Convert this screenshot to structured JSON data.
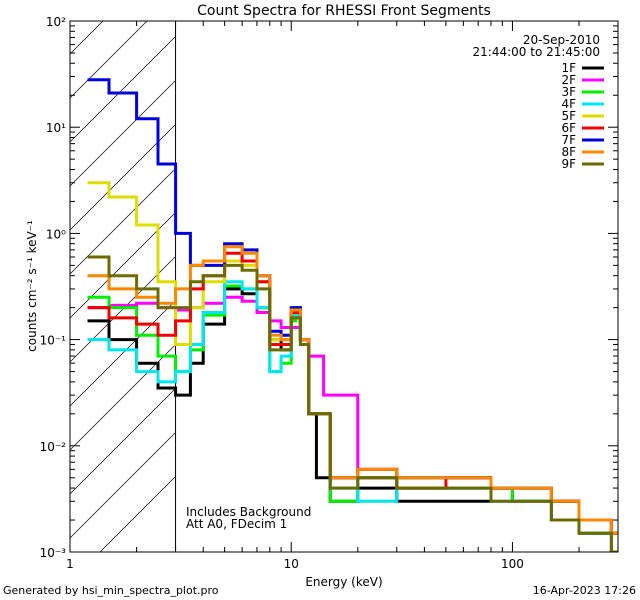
{
  "chart_data": {
    "type": "line",
    "title": "Count Spectra for RHESSI Front Segments",
    "xlabel": "Energy (keV)",
    "ylabel": "counts cm⁻² s⁻¹ keV⁻¹",
    "xscale": "log",
    "yscale": "log",
    "xlim": [
      1,
      300
    ],
    "ylim": [
      0.001,
      100
    ],
    "x_ticks": [
      {
        "value": 1,
        "label": "1"
      },
      {
        "value": 10,
        "label": "10"
      },
      {
        "value": 100,
        "label": "100"
      }
    ],
    "y_ticks": [
      {
        "value": 0.001,
        "label": "10⁻³"
      },
      {
        "value": 0.01,
        "label": "10⁻²"
      },
      {
        "value": 0.1,
        "label": "10⁻¹"
      },
      {
        "value": 1,
        "label": "10⁰"
      },
      {
        "value": 10,
        "label": "10¹"
      },
      {
        "value": 100,
        "label": "10²"
      }
    ],
    "date": "20-Sep-2010",
    "time_range": "21:44:00 to 21:45:00",
    "annotations": [
      "Includes Background",
      "Att A0, FDecim 1"
    ],
    "hatched_region": {
      "x_from": 1,
      "x_to": 3
    },
    "series": [
      {
        "name": "1F",
        "color": "#000000",
        "x": [
          1.2,
          1.5,
          2.0,
          2.5,
          3.0,
          3.5,
          4.0,
          5.0,
          6.0,
          7.0,
          8.0,
          9.0,
          10.0,
          10.5,
          11.0,
          12.0,
          13.0,
          15.0,
          20.0,
          30.0,
          50.0,
          80.0,
          100.0,
          150.0,
          200.0,
          280.0
        ],
        "values": [
          0.15,
          0.1,
          0.06,
          0.035,
          0.03,
          0.06,
          0.14,
          0.3,
          0.27,
          0.2,
          0.1,
          0.08,
          0.16,
          0.18,
          0.1,
          0.02,
          0.005,
          0.003,
          0.004,
          0.003,
          0.003,
          0.004,
          0.003,
          0.002,
          0.0015,
          0.001
        ]
      },
      {
        "name": "2F",
        "color": "#ff00ff",
        "x": [
          1.2,
          1.5,
          2.0,
          2.5,
          3.0,
          3.5,
          4.0,
          5.0,
          6.0,
          7.0,
          8.0,
          9.0,
          10.0,
          11.0,
          12.0,
          14.0,
          20.0,
          30.0,
          50.0,
          80.0,
          100.0,
          150.0,
          200.0,
          280.0
        ],
        "values": [
          0.2,
          0.21,
          0.22,
          0.2,
          0.19,
          0.2,
          0.22,
          0.25,
          0.23,
          0.18,
          0.15,
          0.13,
          0.13,
          0.1,
          0.07,
          0.03,
          0.006,
          0.004,
          0.004,
          0.004,
          0.003,
          0.003,
          0.002,
          0.0015
        ]
      },
      {
        "name": "3F",
        "color": "#00ee00",
        "x": [
          1.2,
          1.5,
          2.0,
          2.5,
          3.0,
          3.5,
          4.0,
          5.0,
          6.0,
          7.0,
          8.0,
          9.0,
          10.0,
          10.5,
          11.0,
          12.0,
          15.0,
          20.0,
          30.0,
          50.0,
          80.0,
          100.0,
          150.0,
          200.0,
          280.0
        ],
        "values": [
          0.25,
          0.2,
          0.11,
          0.07,
          0.05,
          0.08,
          0.17,
          0.32,
          0.3,
          0.2,
          0.05,
          0.06,
          0.15,
          0.2,
          0.1,
          0.02,
          0.003,
          0.005,
          0.004,
          0.004,
          0.004,
          0.003,
          0.003,
          0.002,
          0.0015
        ]
      },
      {
        "name": "4F",
        "color": "#00e5ee",
        "x": [
          1.2,
          1.5,
          2.0,
          2.5,
          3.0,
          3.5,
          4.0,
          5.0,
          6.0,
          7.0,
          8.0,
          9.0,
          10.0,
          11.0,
          12.0,
          15.0,
          20.0,
          30.0,
          50.0,
          80.0,
          100.0,
          150.0,
          200.0,
          280.0
        ],
        "values": [
          0.1,
          0.08,
          0.05,
          0.04,
          0.05,
          0.09,
          0.18,
          0.35,
          0.3,
          0.2,
          0.05,
          0.07,
          0.17,
          0.09,
          0.02,
          0.004,
          0.003,
          0.004,
          0.004,
          0.003,
          0.003,
          0.002,
          0.0015,
          0.001
        ]
      },
      {
        "name": "5F",
        "color": "#dddd00",
        "x": [
          1.2,
          1.5,
          2.0,
          2.5,
          3.0,
          3.5,
          4.0,
          5.0,
          6.0,
          7.0,
          8.0,
          9.0,
          10.0,
          11.0,
          12.0,
          15.0,
          20.0,
          30.0,
          50.0,
          80.0,
          100.0,
          150.0,
          200.0,
          280.0
        ],
        "values": [
          3.0,
          2.2,
          1.2,
          0.35,
          0.09,
          0.2,
          0.35,
          0.55,
          0.5,
          0.35,
          0.1,
          0.1,
          0.18,
          0.1,
          0.02,
          0.005,
          0.006,
          0.005,
          0.005,
          0.004,
          0.004,
          0.003,
          0.002,
          0.0015
        ]
      },
      {
        "name": "6F",
        "color": "#ee0000",
        "x": [
          1.2,
          1.5,
          2.0,
          2.5,
          3.0,
          3.5,
          4.0,
          5.0,
          6.0,
          7.0,
          8.0,
          9.0,
          10.0,
          11.0,
          12.0,
          15.0,
          20.0,
          30.0,
          50.0,
          80.0,
          100.0,
          150.0,
          200.0,
          280.0
        ],
        "values": [
          0.2,
          0.16,
          0.14,
          0.11,
          0.15,
          0.3,
          0.4,
          0.65,
          0.55,
          0.35,
          0.09,
          0.09,
          0.18,
          0.1,
          0.02,
          0.005,
          0.005,
          0.004,
          0.005,
          0.004,
          0.004,
          0.003,
          0.002,
          0.0015
        ]
      },
      {
        "name": "7F",
        "color": "#0000dd",
        "x": [
          1.2,
          1.5,
          2.0,
          2.5,
          3.0,
          3.5,
          4.0,
          5.0,
          6.0,
          7.0,
          8.0,
          9.0,
          10.0,
          11.0,
          12.0,
          15.0,
          20.0,
          30.0,
          50.0,
          80.0,
          100.0,
          150.0,
          200.0,
          280.0
        ],
        "values": [
          28.0,
          21.0,
          12.0,
          4.5,
          1.0,
          0.5,
          0.5,
          0.8,
          0.7,
          0.4,
          0.12,
          0.11,
          0.2,
          0.1,
          0.02,
          0.005,
          0.006,
          0.005,
          0.005,
          0.004,
          0.004,
          0.003,
          0.002,
          0.0015
        ]
      },
      {
        "name": "8F",
        "color": "#ff8800",
        "x": [
          1.2,
          1.5,
          2.0,
          2.5,
          3.0,
          3.5,
          4.0,
          5.0,
          6.0,
          7.0,
          8.0,
          9.0,
          10.0,
          11.0,
          12.0,
          15.0,
          20.0,
          30.0,
          50.0,
          80.0,
          100.0,
          150.0,
          200.0,
          280.0
        ],
        "values": [
          0.4,
          0.3,
          0.25,
          0.22,
          0.3,
          0.5,
          0.55,
          0.75,
          0.65,
          0.4,
          0.11,
          0.1,
          0.19,
          0.1,
          0.02,
          0.005,
          0.006,
          0.005,
          0.005,
          0.004,
          0.004,
          0.003,
          0.002,
          0.0015
        ]
      },
      {
        "name": "9F",
        "color": "#6b6b00",
        "x": [
          1.2,
          1.5,
          2.0,
          2.5,
          3.0,
          3.5,
          4.0,
          5.0,
          6.0,
          7.0,
          8.0,
          9.0,
          10.0,
          11.0,
          12.0,
          15.0,
          20.0,
          30.0,
          50.0,
          80.0,
          100.0,
          150.0,
          200.0,
          280.0
        ],
        "values": [
          0.6,
          0.4,
          0.3,
          0.2,
          0.2,
          0.35,
          0.4,
          0.5,
          0.45,
          0.3,
          0.08,
          0.08,
          0.16,
          0.09,
          0.02,
          0.004,
          0.005,
          0.004,
          0.004,
          0.003,
          0.003,
          0.002,
          0.0015,
          0.001
        ]
      }
    ]
  },
  "footer": {
    "generated_by": "Generated by hsi_min_spectra_plot.pro",
    "timestamp": "16-Apr-2023 17:26"
  }
}
